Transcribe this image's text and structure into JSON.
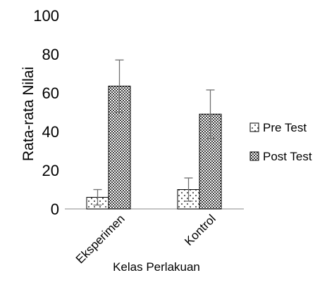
{
  "chart_data": {
    "type": "bar",
    "title": "",
    "xlabel": "Kelas Perlakuan",
    "ylabel": "Rata-rata Nilai",
    "ylim": [
      0,
      100
    ],
    "yticks": [
      0,
      20,
      40,
      60,
      80,
      100
    ],
    "categories": [
      "Eksperimen",
      "Kontrol"
    ],
    "series": [
      {
        "name": "Pre Test",
        "values": [
          6,
          10
        ],
        "error": [
          4,
          6
        ],
        "pattern": "dotted",
        "color": "#000000"
      },
      {
        "name": "Post Test",
        "values": [
          63.5,
          49
        ],
        "error": [
          13.5,
          12.5
        ],
        "pattern": "checker",
        "color": "#000000"
      }
    ],
    "legend_position": "right",
    "grid": false
  }
}
